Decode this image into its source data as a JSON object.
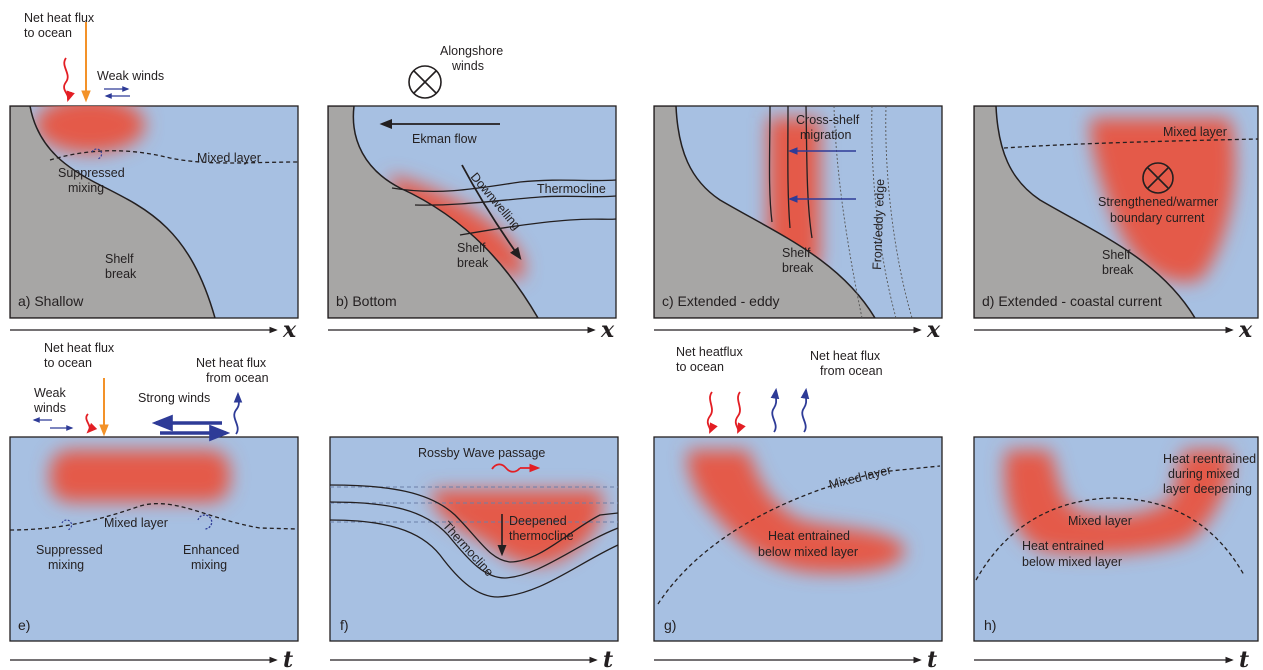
{
  "panels": {
    "a": {
      "panel_label": "a)  Shallow",
      "flux_label_1": "Net heat flux",
      "flux_label_2": "to ocean",
      "winds": "Weak winds",
      "mixed_layer": "Mixed layer",
      "suppressed_1": "Suppressed",
      "suppressed_2": "mixing",
      "shelf_1": "Shelf",
      "shelf_2": "break"
    },
    "b": {
      "panel_label": "b) Bottom",
      "winds_1": "Alongshore",
      "winds_2": "winds",
      "ekman": "Ekman flow",
      "thermocline": "Thermocline",
      "downwelling": "Downwelling",
      "shelf_1": "Shelf",
      "shelf_2": "break"
    },
    "c": {
      "panel_label": "c) Extended - eddy",
      "migration_1": "Cross-shelf",
      "migration_2": "migration",
      "front": "Front/eddy edge",
      "shelf_1": "Shelf",
      "shelf_2": "break"
    },
    "d": {
      "panel_label": "d) Extended - coastal current",
      "mixed_layer": "Mixed layer",
      "current_1": "Strengthened/warmer",
      "current_2": "boundary current",
      "shelf_1": "Shelf",
      "shelf_2": "break"
    },
    "e": {
      "panel_label": "e)",
      "flux_in_1": "Net heat flux",
      "flux_in_2": "to ocean",
      "flux_out_1": "Net heat flux",
      "flux_out_2": "from ocean",
      "weak_1": "Weak",
      "weak_2": "winds",
      "strong": "Strong winds",
      "mixed_layer": "Mixed layer",
      "suppressed_1": "Suppressed",
      "suppressed_2": "mixing",
      "enhanced_1": "Enhanced",
      "enhanced_2": "mixing"
    },
    "f": {
      "panel_label": "f)",
      "rossby": "Rossby Wave passage",
      "deepened_1": "Deepened",
      "deepened_2": "thermocline",
      "thermocline": "Thermocline"
    },
    "g": {
      "panel_label": "g)",
      "flux_in_1": "Net heatflux",
      "flux_in_2": "to ocean",
      "flux_out_1": "Net heat flux",
      "flux_out_2": "from ocean",
      "mixed_layer": "Mixed layer",
      "entrained_1": "Heat entrained",
      "entrained_2": "below mixed layer"
    },
    "h": {
      "panel_label": "h)",
      "reentrained_1": "Heat reentrained",
      "reentrained_2": "during mixed",
      "reentrained_3": "layer deepening",
      "mixed_layer": "Mixed layer",
      "entrained_1": "Heat entrained",
      "entrained_2": "below mixed layer"
    }
  },
  "axes": {
    "top_row": "x",
    "bottom_row": "t"
  },
  "colors": {
    "ocean": "#a7c0e2",
    "land": "#a7a6a5",
    "heat": "#e45a4a",
    "flux_in": "#e31e24",
    "flux_sun": "#f39229",
    "flux_out": "#2e3b97"
  }
}
